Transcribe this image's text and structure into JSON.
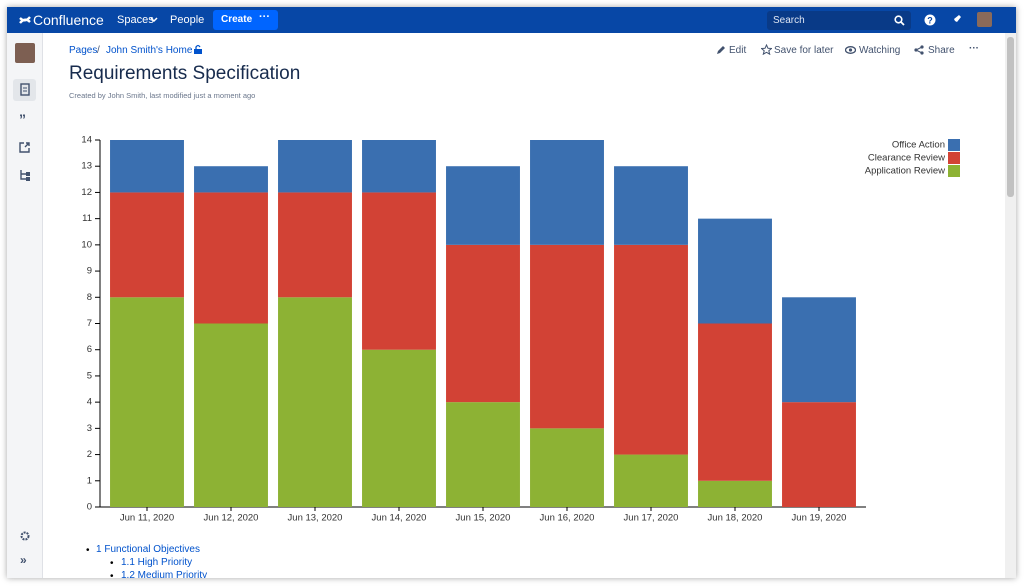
{
  "nav": {
    "logo": "Confluence",
    "spaces": "Spaces",
    "people": "People",
    "create": "Create",
    "search": "Search"
  },
  "breadcrumbs": [
    "Pages",
    "John Smith's Home"
  ],
  "actions": {
    "edit": "Edit",
    "save": "Save for later",
    "watching": "Watching",
    "share": "Share"
  },
  "page": {
    "title": "Requirements Specification",
    "byline": "Created by John Smith, last modified just a moment ago"
  },
  "toc": [
    "1 Functional Objectives",
    "1.1 High Priority",
    "1.2 Medium Priority"
  ],
  "chart_data": {
    "type": "stacked_bar",
    "categories": [
      "Jun 11, 2020",
      "Jun 12, 2020",
      "Jun 13, 2020",
      "Jun 14, 2020",
      "Jun 15, 2020",
      "Jun 16, 2020",
      "Jun 17, 2020",
      "Jun 18, 2020",
      "Jun 19, 2020"
    ],
    "series": [
      {
        "name": "Application Review",
        "color": "#8db234",
        "values": [
          8,
          7,
          8,
          6,
          4,
          3,
          2,
          1,
          0
        ]
      },
      {
        "name": "Clearance Review",
        "color": "#d24235",
        "values": [
          4,
          5,
          4,
          6,
          6,
          7,
          8,
          6,
          4
        ]
      },
      {
        "name": "Office Action",
        "color": "#3a6fb0",
        "values": [
          2,
          1,
          2,
          2,
          3,
          4,
          3,
          4,
          4
        ]
      }
    ],
    "ylim": [
      0,
      14
    ],
    "yticks": [
      0,
      1,
      2,
      3,
      4,
      5,
      6,
      7,
      8,
      9,
      10,
      11,
      12,
      13,
      14
    ],
    "grid": false,
    "legend": "top-right"
  }
}
